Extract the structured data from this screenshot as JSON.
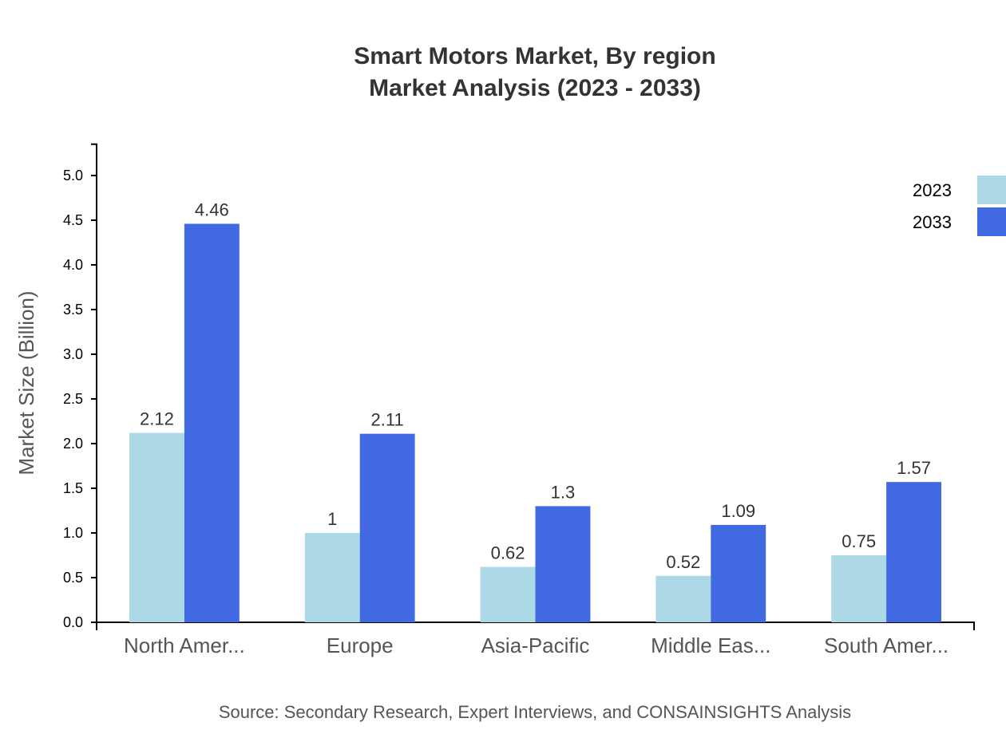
{
  "chart_data": {
    "type": "bar",
    "title": "Smart Motors Market, By region",
    "subtitle": "Market Analysis (2023 - 2033)",
    "xlabel": "",
    "ylabel": "Market Size (Billion)",
    "categories": [
      "North Amer...",
      "Europe",
      "Asia-Pacific",
      "Middle Eas...",
      "South Amer..."
    ],
    "series": [
      {
        "name": "2023",
        "color": "#ADD8E6",
        "values": [
          2.12,
          1,
          0.62,
          0.52,
          0.75
        ]
      },
      {
        "name": "2033",
        "color": "#4169E1",
        "values": [
          4.46,
          2.11,
          1.3,
          1.09,
          1.57
        ]
      }
    ],
    "ylim": [
      0,
      5.35
    ],
    "yticks": [
      "0.0",
      "0.5",
      "1.0",
      "1.5",
      "2.0",
      "2.5",
      "3.0",
      "3.5",
      "4.0",
      "4.5",
      "5.0"
    ],
    "grid": false,
    "legend_position": "top-right",
    "source": "Source: Secondary Research, Expert Interviews, and CONSAINSIGHTS Analysis"
  }
}
